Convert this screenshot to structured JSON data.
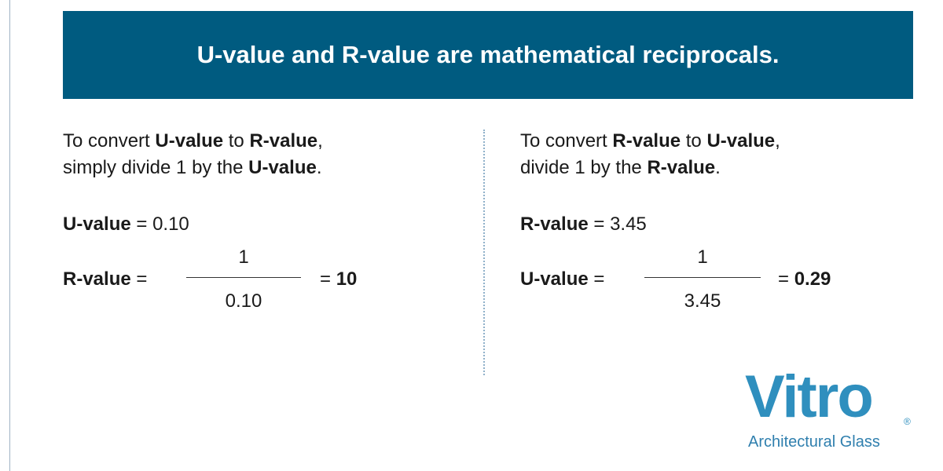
{
  "header": {
    "title": "U-value and R-value are mathematical reciprocals."
  },
  "left": {
    "instruction": [
      [
        "To convert",
        "U-value",
        "to",
        "R-value",
        ","
      ],
      [
        "simply divide 1 by the",
        "U-value",
        "."
      ]
    ],
    "given": {
      "label": "U-value",
      "equals": "=",
      "value": "0.10"
    },
    "result": {
      "label": "R-value",
      "equals": "=",
      "numerator": "1",
      "denominator": "0.10",
      "result_equals": "=",
      "result": "10"
    }
  },
  "right": {
    "instruction": [
      [
        "To convert",
        "R-value",
        "to",
        "U-value",
        ","
      ],
      [
        "divide 1 by the",
        "R-value",
        "."
      ]
    ],
    "given": {
      "label": "R-value",
      "equals": "=",
      "value": "3.45"
    },
    "result": {
      "label": "U-value",
      "equals": "=",
      "numerator": "1",
      "denominator": "3.45",
      "result_equals": "=",
      "result": "0.29"
    }
  },
  "logo": {
    "name": "Vitro",
    "mark": "®",
    "tagline": "Architectural Glass"
  }
}
